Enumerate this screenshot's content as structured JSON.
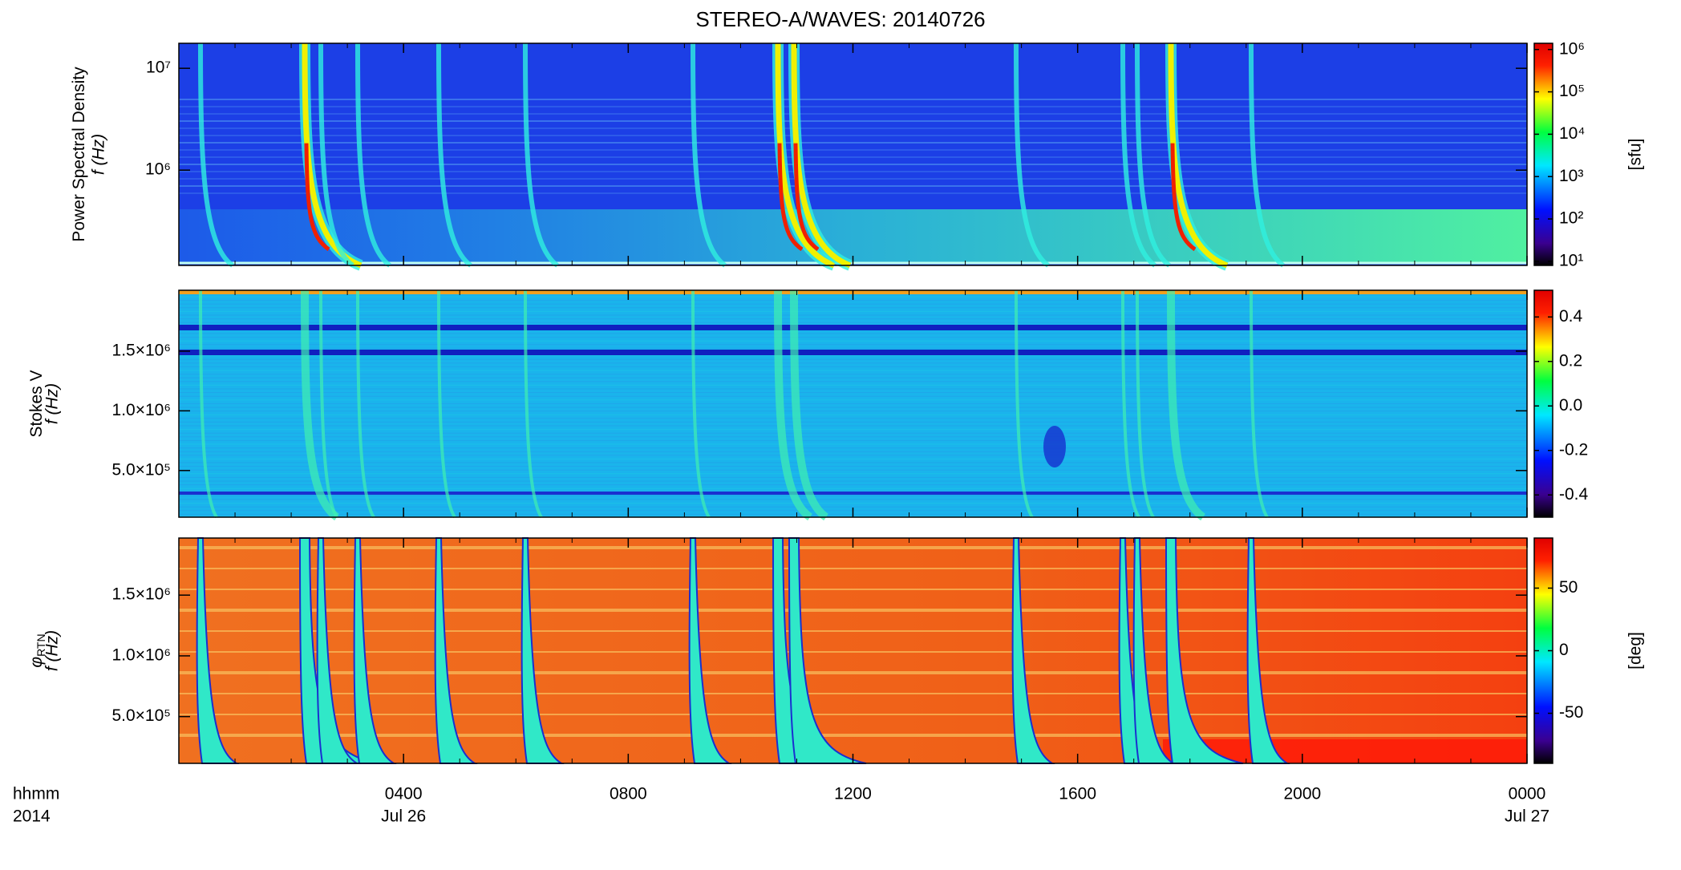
{
  "chart_data": [
    {
      "type": "heatmap",
      "title": "STEREO-A/WAVES: 20140726",
      "ylabel": "Power Spectral Density",
      "ylabel_unit": "f (Hz)",
      "ylog": true,
      "ylim": [
        116000,
        17600000
      ],
      "yticks": [
        {
          "value": 1000000,
          "label": "10⁶"
        },
        {
          "value": 10000000,
          "label": "10⁷"
        }
      ],
      "colorbar_log": true,
      "clim": [
        8,
        1400000
      ],
      "cticks": [
        {
          "value": 10,
          "label": "10¹"
        },
        {
          "value": 100,
          "label": "10²"
        },
        {
          "value": 1000,
          "label": "10³"
        },
        {
          "value": 10000,
          "label": "10⁴"
        },
        {
          "value": 100000,
          "label": "10⁵"
        },
        {
          "value": 1000000,
          "label": "10⁶"
        }
      ],
      "colorbar_label": "[sfu]"
    },
    {
      "type": "heatmap",
      "ylabel": "Stokes V",
      "ylabel_unit": "f (Hz)",
      "ylog": false,
      "ylim": [
        109000,
        2010000
      ],
      "yticks": [
        {
          "value": 500000,
          "label": "5.0×10⁵"
        },
        {
          "value": 1000000,
          "label": "1.0×10⁶"
        },
        {
          "value": 1500000,
          "label": "1.5×10⁶"
        }
      ],
      "colorbar_log": false,
      "clim": [
        -0.5,
        0.52
      ],
      "cticks": [
        -0.4,
        -0.2,
        {
          "value": 0,
          "label": "0.0"
        },
        0.2,
        0.4
      ]
    },
    {
      "type": "heatmap",
      "ylabel": "φ",
      "ylabel_sub": "RTN",
      "ylabel_unit": "f (Hz)",
      "ylog": false,
      "ylim": [
        115000,
        1970000
      ],
      "yticks": [
        {
          "value": 500000,
          "label": "5.0×10⁵"
        },
        {
          "value": 1000000,
          "label": "1.0×10⁶"
        },
        {
          "value": 1500000,
          "label": "1.5×10⁶"
        }
      ],
      "colorbar_log": false,
      "clim": [
        -90,
        90
      ],
      "cticks": [
        -50,
        0,
        50
      ],
      "colorbar_label": "[deg]",
      "xlim": [
        0,
        24
      ],
      "xticks": [
        {
          "value": 4,
          "label": "0400"
        },
        {
          "value": 8,
          "label": "0800"
        },
        {
          "value": 12,
          "label": "1200"
        },
        {
          "value": 16,
          "label": "1600"
        },
        {
          "value": 20,
          "label": "2000"
        },
        {
          "value": 24,
          "label": "0000"
        }
      ],
      "date_labels": [
        {
          "value": 4,
          "label": "Jul 26"
        },
        {
          "value": 24,
          "label": "Jul 27"
        }
      ],
      "xlabel_lines": [
        "hhmm",
        "2014"
      ]
    }
  ]
}
